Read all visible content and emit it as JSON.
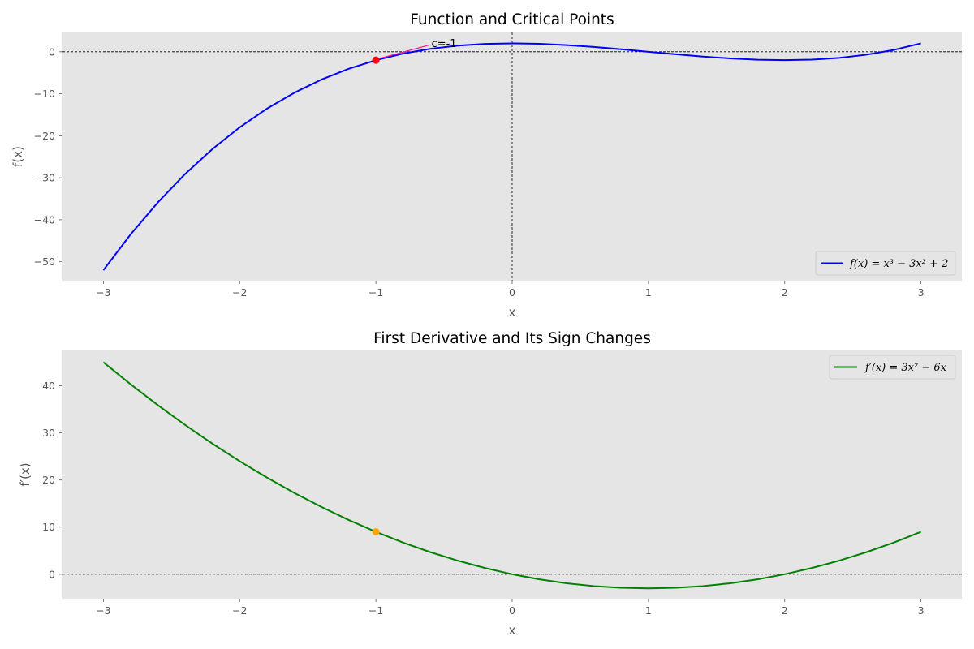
{
  "colors": {
    "plot_bg": "#e5e5e5",
    "f_line": "#0000ff",
    "fp_line": "#008000",
    "critical_point": "#ff0000",
    "derivative_point": "#ffa500",
    "annotation_arrow": "#ff1493",
    "ref_line": "#000000"
  },
  "chart_data": [
    {
      "type": "line",
      "title": "Function and Critical Points",
      "xlabel": "x",
      "ylabel": "f(x)",
      "xlim": [
        -3.3,
        3.3
      ],
      "ylim": [
        -54.5,
        4.6
      ],
      "xticks": [
        -3,
        -2,
        -1,
        0,
        1,
        2,
        3
      ],
      "xtick_labels": [
        "−3",
        "−2",
        "−1",
        "0",
        "1",
        "2",
        "3"
      ],
      "yticks": [
        0,
        -10,
        -20,
        -30,
        -40,
        -50
      ],
      "ytick_labels": [
        "0",
        "−10",
        "−20",
        "−30",
        "−40",
        "−50"
      ],
      "grid": false,
      "legend_position": "lower-right",
      "reference_lines": {
        "horizontal_y": 0,
        "vertical_x": 0
      },
      "series": [
        {
          "name": "f(x) = x³ − 3x² + 2",
          "x": [
            -3.0,
            -2.8,
            -2.6,
            -2.4,
            -2.2,
            -2.0,
            -1.8,
            -1.6,
            -1.4,
            -1.2,
            -1.0,
            -0.8,
            -0.6,
            -0.4,
            -0.2,
            0.0,
            0.2,
            0.4,
            0.6,
            0.8,
            1.0,
            1.2,
            1.4,
            1.6,
            1.8,
            2.0,
            2.2,
            2.4,
            2.6,
            2.8,
            3.0
          ],
          "y": [
            -52.0,
            -43.47,
            -35.86,
            -29.1,
            -23.17,
            -18.0,
            -13.55,
            -9.78,
            -6.62,
            -4.05,
            -2.0,
            -0.43,
            0.7,
            1.46,
            1.87,
            2.0,
            1.89,
            1.58,
            1.14,
            0.59,
            0.0,
            -0.59,
            -1.14,
            -1.58,
            -1.89,
            -2.0,
            -1.87,
            -1.46,
            -0.7,
            0.43,
            2.0
          ]
        }
      ],
      "points": [
        {
          "x": -1,
          "y": -2
        }
      ],
      "annotations": [
        {
          "text": "c=-1",
          "x": -0.5,
          "y": 2.0,
          "arrow_to": {
            "x": -1,
            "y": -2
          }
        }
      ]
    },
    {
      "type": "line",
      "title": "First Derivative and Its Sign Changes",
      "xlabel": "x",
      "ylabel": "f′(x)",
      "xlim": [
        -3.3,
        3.3
      ],
      "ylim": [
        -5.2,
        47.5
      ],
      "xticks": [
        -3,
        -2,
        -1,
        0,
        1,
        2,
        3
      ],
      "xtick_labels": [
        "−3",
        "−2",
        "−1",
        "0",
        "1",
        "2",
        "3"
      ],
      "yticks": [
        0,
        10,
        20,
        30,
        40
      ],
      "ytick_labels": [
        "0",
        "10",
        "20",
        "30",
        "40"
      ],
      "grid": false,
      "legend_position": "upper-right",
      "reference_lines": {
        "horizontal_y": 0
      },
      "series": [
        {
          "name": "f′(x) = 3x² − 6x",
          "x": [
            -3.0,
            -2.8,
            -2.6,
            -2.4,
            -2.2,
            -2.0,
            -1.8,
            -1.6,
            -1.4,
            -1.2,
            -1.0,
            -0.8,
            -0.6,
            -0.4,
            -0.2,
            0.0,
            0.2,
            0.4,
            0.6,
            0.8,
            1.0,
            1.2,
            1.4,
            1.6,
            1.8,
            2.0,
            2.2,
            2.4,
            2.6,
            2.8,
            3.0
          ],
          "y": [
            45.0,
            40.32,
            35.88,
            31.68,
            27.72,
            24.0,
            20.52,
            17.28,
            14.28,
            11.52,
            9.0,
            6.72,
            4.68,
            2.88,
            1.32,
            0.0,
            -1.08,
            -1.92,
            -2.52,
            -2.88,
            -3.0,
            -2.88,
            -2.52,
            -1.92,
            -1.08,
            0.0,
            1.32,
            2.88,
            4.68,
            6.72,
            9.0
          ]
        }
      ],
      "points": [
        {
          "x": -1,
          "y": 9
        }
      ]
    }
  ]
}
